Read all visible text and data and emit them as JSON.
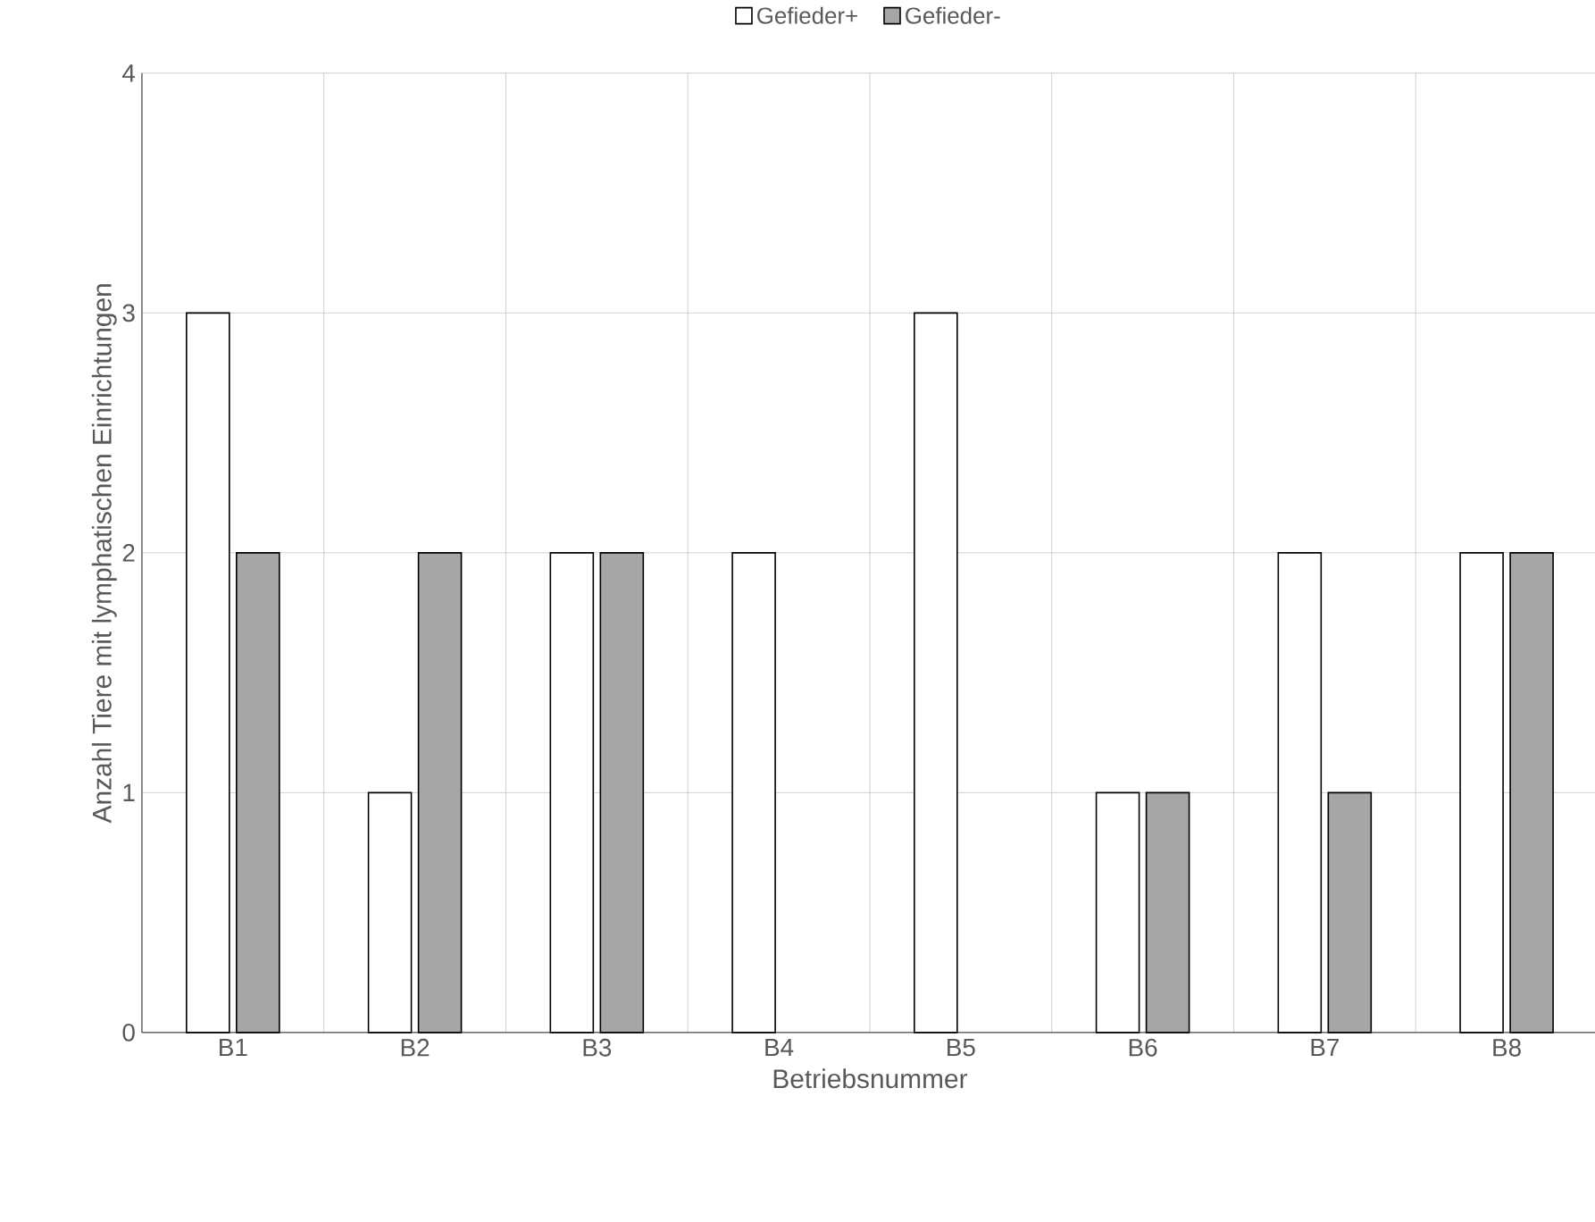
{
  "chart_data": {
    "type": "bar",
    "xlabel": "Betriebsnummer",
    "ylabel": "Anzahl Tiere mit lymphatischen Einrichtungen",
    "categories": [
      "B1",
      "B2",
      "B3",
      "B4",
      "B5",
      "B6",
      "B7",
      "B8"
    ],
    "series": [
      {
        "name": "Gefieder+",
        "color": "#ffffff",
        "values": [
          3,
          1,
          2,
          2,
          3,
          1,
          2,
          2
        ]
      },
      {
        "name": "Gefieder-",
        "color": "#a6a6a6",
        "values": [
          2,
          2,
          2,
          0,
          0,
          1,
          1,
          2
        ]
      }
    ],
    "ylim": [
      0,
      4
    ],
    "yticks": [
      0,
      1,
      2,
      3,
      4
    ],
    "grid": true,
    "legend": "top"
  }
}
